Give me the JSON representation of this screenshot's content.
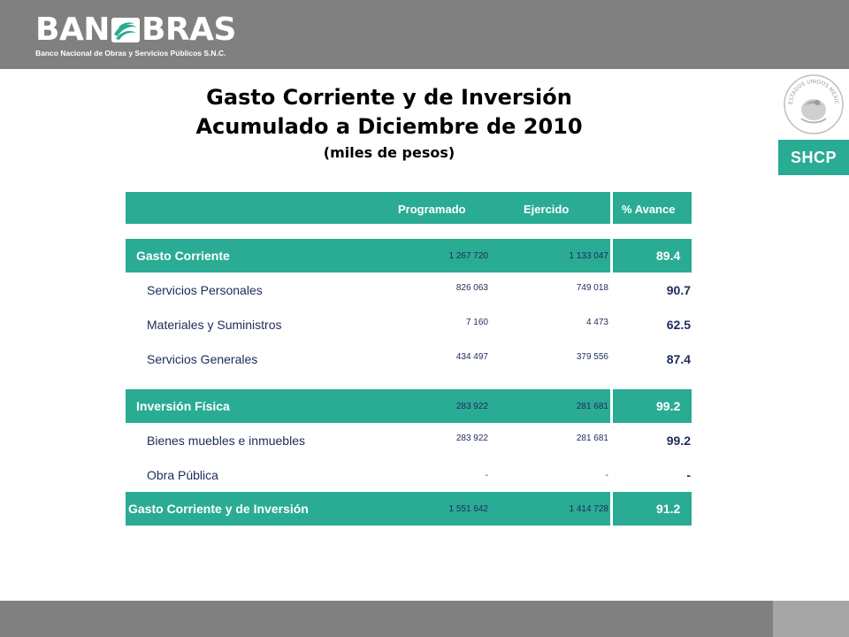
{
  "header": {
    "logo_text_left": "BAN",
    "logo_text_right": "BRAS",
    "logo_subtitle": "Banco Nacional de Obras y Servicios Públicos S.N.C.",
    "seal_text": "ESTADOS UNIDOS MEXICANOS",
    "agency": "SHCP"
  },
  "title": {
    "line1": "Gasto Corriente y de Inversión",
    "line2": "Acumulado a Diciembre de 2010",
    "line3": "(miles de pesos)"
  },
  "table": {
    "columns": {
      "programado": "Programado",
      "ejercido": "Ejercido",
      "avance": "% Avance"
    },
    "rows": [
      {
        "label": "Gasto Corriente",
        "programado": "1 267 720",
        "ejercido": "1 133 047",
        "avance": "89.4"
      },
      {
        "label": "Servicios Personales",
        "programado": "826 063",
        "ejercido": "749 018",
        "avance": "90.7"
      },
      {
        "label": "Materiales y Suministros",
        "programado": "7 160",
        "ejercido": "4 473",
        "avance": "62.5"
      },
      {
        "label": "Servicios Generales",
        "programado": "434 497",
        "ejercido": "379 556",
        "avance": "87.4"
      },
      {
        "label": "Inversión Física",
        "programado": "283 922",
        "ejercido": "281 681",
        "avance": "99.2"
      },
      {
        "label": "Bienes muebles e inmuebles",
        "programado": "283 922",
        "ejercido": "281 681",
        "avance": "99.2"
      },
      {
        "label": "Obra Pública",
        "programado": "-",
        "ejercido": "-",
        "avance": "-"
      },
      {
        "label": "Gasto Corriente y de Inversión",
        "programado": "1 551 642",
        "ejercido": "1 414 728",
        "avance": "91.2"
      }
    ]
  },
  "colors": {
    "accent_teal": "#2aab94",
    "bar_gray": "#808080",
    "text_navy": "#1f2a5c"
  }
}
